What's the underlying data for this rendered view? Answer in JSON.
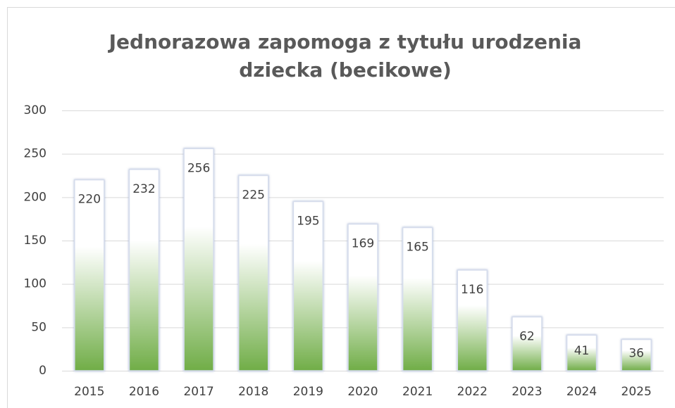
{
  "chart_data": {
    "type": "bar",
    "title": "Jednorazowa zapomoga z tytułu urodzenia dziecka (becikowe)",
    "categories": [
      "2015",
      "2016",
      "2017",
      "2018",
      "2019",
      "2020",
      "2021",
      "2022",
      "2023",
      "2024",
      "2025"
    ],
    "values": [
      220,
      232,
      256,
      225,
      195,
      169,
      165,
      116,
      62,
      41,
      36
    ],
    "color": "#70ad47",
    "ylim": [
      0,
      300
    ],
    "yticks": [
      0,
      50,
      100,
      150,
      200,
      250,
      300
    ],
    "grid": true
  }
}
